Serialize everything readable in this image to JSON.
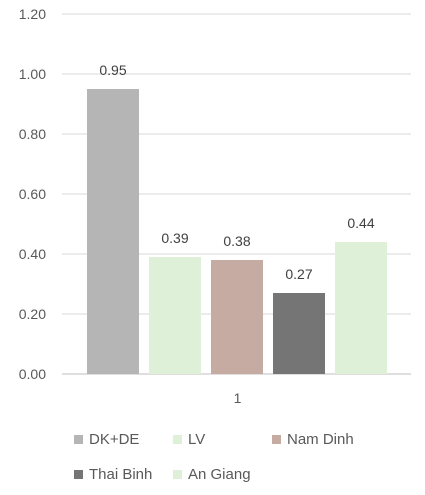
{
  "chart_data": {
    "type": "bar",
    "categories": [
      "1"
    ],
    "series": [
      {
        "name": "DK+DE",
        "values": [
          0.95
        ],
        "color": "#b5b5b5"
      },
      {
        "name": "LV",
        "values": [
          0.39
        ],
        "color": "#dff0d8"
      },
      {
        "name": "Nam Dinh",
        "values": [
          0.38
        ],
        "color": "#c5aba2"
      },
      {
        "name": "Thai Binh",
        "values": [
          0.27
        ],
        "color": "#757575"
      },
      {
        "name": "An Giang",
        "values": [
          0.44
        ],
        "color": "#dff0d8"
      }
    ],
    "data_labels": [
      "0.95",
      "0.39",
      "0.38",
      "0.27",
      "0.44"
    ],
    "ylim": [
      0,
      1.2
    ],
    "yticks": [
      "0.00",
      "0.20",
      "0.40",
      "0.60",
      "0.80",
      "1.00",
      "1.20"
    ],
    "title": "",
    "xlabel": "",
    "ylabel": "",
    "grid": true,
    "legend_position": "bottom"
  }
}
